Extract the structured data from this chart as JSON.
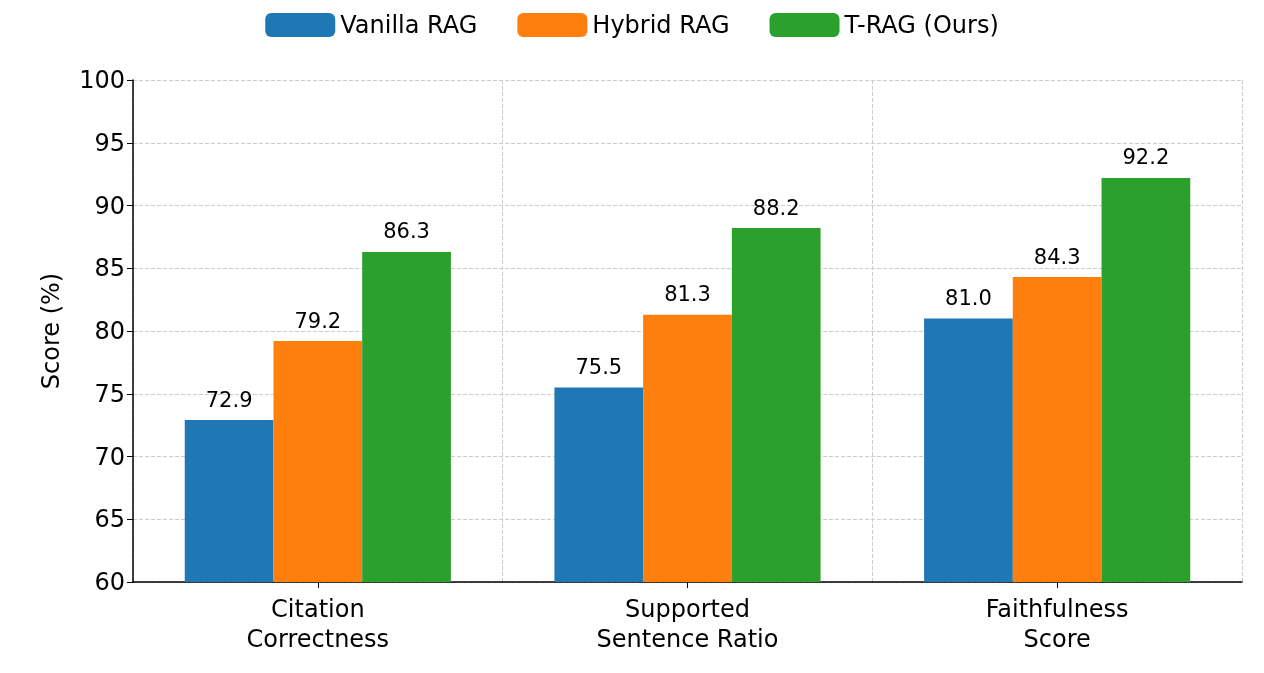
{
  "chart_data": {
    "type": "bar",
    "ylabel": "Score (%)",
    "categories": [
      "Citation\nCorrectness",
      "Supported\nSentence Ratio",
      "Faithfulness\nScore"
    ],
    "series": [
      {
        "name": "Vanilla RAG",
        "color": "#1f77b4",
        "values": [
          72.9,
          75.5,
          81.0
        ],
        "value_labels": [
          "72.9",
          "75.5",
          "81.0"
        ]
      },
      {
        "name": "Hybrid RAG",
        "color": "#ff7f0e",
        "values": [
          79.2,
          81.3,
          84.3
        ],
        "value_labels": [
          "79.2",
          "81.3",
          "84.3"
        ]
      },
      {
        "name": "T-RAG (Ours)",
        "color": "#2ca02c",
        "values": [
          86.3,
          88.2,
          92.2
        ],
        "value_labels": [
          "86.3",
          "88.2",
          "92.2"
        ]
      }
    ],
    "ylim": [
      60,
      100
    ],
    "yticks": [
      60,
      65,
      70,
      75,
      80,
      85,
      90,
      95,
      100
    ],
    "grid": true,
    "legend": "top"
  }
}
